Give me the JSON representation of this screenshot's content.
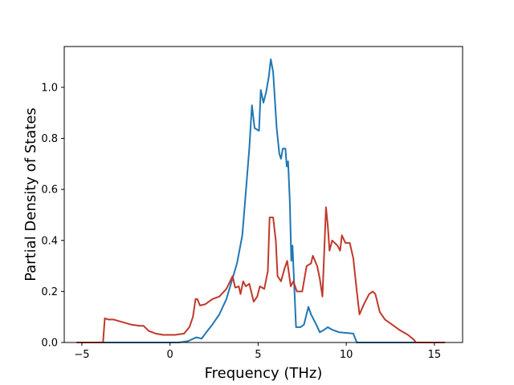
{
  "chart_data": {
    "type": "line",
    "title": "",
    "xlabel": "Frequency (THz)",
    "ylabel": "Partial Density of States",
    "xlim": [
      -6.0,
      16.6
    ],
    "ylim": [
      0.0,
      1.16
    ],
    "xticks": [
      -5,
      0,
      5,
      10,
      15
    ],
    "xtick_labels": [
      "−5",
      "0",
      "5",
      "10",
      "15"
    ],
    "yticks": [
      0.0,
      0.2,
      0.4,
      0.6,
      0.8,
      1.0
    ],
    "ytick_labels": [
      "0.0",
      "0.2",
      "0.4",
      "0.6",
      "0.8",
      "1.0"
    ],
    "grid": false,
    "legend": "none",
    "series": [
      {
        "color": "#1f77b4",
        "points": [
          [
            -5.3,
            0.0
          ],
          [
            -2.0,
            0.0
          ],
          [
            0.5,
            0.0
          ],
          [
            1.0,
            0.005
          ],
          [
            1.5,
            0.02
          ],
          [
            1.8,
            0.015
          ],
          [
            2.0,
            0.035
          ],
          [
            2.4,
            0.07
          ],
          [
            2.8,
            0.11
          ],
          [
            3.2,
            0.17
          ],
          [
            3.5,
            0.24
          ],
          [
            3.8,
            0.31
          ],
          [
            4.1,
            0.42
          ],
          [
            4.3,
            0.59
          ],
          [
            4.5,
            0.76
          ],
          [
            4.65,
            0.93
          ],
          [
            4.8,
            0.84
          ],
          [
            5.05,
            0.83
          ],
          [
            5.15,
            0.99
          ],
          [
            5.3,
            0.94
          ],
          [
            5.45,
            0.98
          ],
          [
            5.6,
            1.04
          ],
          [
            5.72,
            1.11
          ],
          [
            5.85,
            1.06
          ],
          [
            6.05,
            0.84
          ],
          [
            6.2,
            0.74
          ],
          [
            6.3,
            0.72
          ],
          [
            6.4,
            0.76
          ],
          [
            6.55,
            0.76
          ],
          [
            6.62,
            0.69
          ],
          [
            6.7,
            0.71
          ],
          [
            6.8,
            0.55
          ],
          [
            6.88,
            0.32
          ],
          [
            6.95,
            0.38
          ],
          [
            7.05,
            0.22
          ],
          [
            7.15,
            0.06
          ],
          [
            7.4,
            0.06
          ],
          [
            7.6,
            0.07
          ],
          [
            7.85,
            0.14
          ],
          [
            8.0,
            0.11
          ],
          [
            8.3,
            0.07
          ],
          [
            8.5,
            0.04
          ],
          [
            8.75,
            0.05
          ],
          [
            8.95,
            0.06
          ],
          [
            9.2,
            0.05
          ],
          [
            9.6,
            0.04
          ],
          [
            10.4,
            0.035
          ],
          [
            10.6,
            0.0
          ],
          [
            15.6,
            0.0
          ]
        ]
      },
      {
        "color": "#c0392b",
        "points": [
          [
            -5.3,
            0.0
          ],
          [
            -3.8,
            0.0
          ],
          [
            -3.7,
            0.095
          ],
          [
            -3.5,
            0.09
          ],
          [
            -3.2,
            0.09
          ],
          [
            -2.7,
            0.08
          ],
          [
            -2.2,
            0.07
          ],
          [
            -1.7,
            0.065
          ],
          [
            -1.5,
            0.065
          ],
          [
            -1.2,
            0.045
          ],
          [
            -0.8,
            0.035
          ],
          [
            -0.4,
            0.03
          ],
          [
            0.3,
            0.03
          ],
          [
            0.8,
            0.035
          ],
          [
            1.1,
            0.06
          ],
          [
            1.3,
            0.1
          ],
          [
            1.45,
            0.17
          ],
          [
            1.55,
            0.17
          ],
          [
            1.7,
            0.145
          ],
          [
            2.0,
            0.15
          ],
          [
            2.4,
            0.17
          ],
          [
            2.8,
            0.18
          ],
          [
            3.2,
            0.21
          ],
          [
            3.55,
            0.26
          ],
          [
            3.7,
            0.215
          ],
          [
            3.9,
            0.22
          ],
          [
            4.0,
            0.19
          ],
          [
            4.15,
            0.24
          ],
          [
            4.3,
            0.22
          ],
          [
            4.5,
            0.23
          ],
          [
            4.75,
            0.16
          ],
          [
            4.95,
            0.18
          ],
          [
            5.1,
            0.22
          ],
          [
            5.35,
            0.21
          ],
          [
            5.55,
            0.28
          ],
          [
            5.65,
            0.49
          ],
          [
            5.85,
            0.49
          ],
          [
            6.0,
            0.4
          ],
          [
            6.1,
            0.26
          ],
          [
            6.3,
            0.24
          ],
          [
            6.5,
            0.29
          ],
          [
            6.65,
            0.32
          ],
          [
            6.85,
            0.22
          ],
          [
            7.0,
            0.24
          ],
          [
            7.2,
            0.2
          ],
          [
            7.5,
            0.2
          ],
          [
            7.75,
            0.3
          ],
          [
            8.0,
            0.31
          ],
          [
            8.1,
            0.34
          ],
          [
            8.35,
            0.3
          ],
          [
            8.5,
            0.25
          ],
          [
            8.65,
            0.18
          ],
          [
            8.85,
            0.53
          ],
          [
            8.95,
            0.46
          ],
          [
            9.05,
            0.36
          ],
          [
            9.2,
            0.4
          ],
          [
            9.5,
            0.38
          ],
          [
            9.65,
            0.36
          ],
          [
            9.75,
            0.42
          ],
          [
            9.95,
            0.39
          ],
          [
            10.2,
            0.39
          ],
          [
            10.4,
            0.33
          ],
          [
            10.6,
            0.2
          ],
          [
            10.75,
            0.11
          ],
          [
            11.0,
            0.15
          ],
          [
            11.3,
            0.19
          ],
          [
            11.5,
            0.2
          ],
          [
            11.65,
            0.19
          ],
          [
            11.9,
            0.12
          ],
          [
            12.2,
            0.09
          ],
          [
            12.6,
            0.07
          ],
          [
            13.0,
            0.05
          ],
          [
            13.5,
            0.03
          ],
          [
            13.85,
            0.01
          ],
          [
            13.95,
            0.0
          ],
          [
            15.6,
            0.0
          ]
        ]
      }
    ]
  }
}
